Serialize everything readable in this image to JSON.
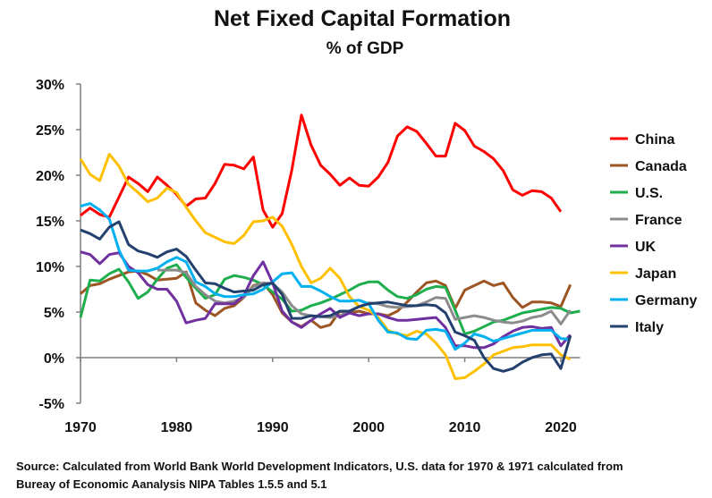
{
  "chart_data": {
    "type": "line",
    "title": "Net Fixed Capital Formation",
    "subtitle": "% of GDP",
    "xlabel": "",
    "ylabel": "",
    "xlim": [
      1970,
      2022
    ],
    "ylim": [
      -5,
      30
    ],
    "x_ticks": [
      "1970",
      "1980",
      "1990",
      "2000",
      "2010",
      "2020"
    ],
    "y_ticks": [
      "-5%",
      "0%",
      "5%",
      "10%",
      "15%",
      "20%",
      "25%",
      "30%"
    ],
    "grid": false,
    "legend_position": "right",
    "source": "Source:  Calculated from World Bank World Development Indicators, U.S. data for 1970 & 1971 calculated from Bureay of Economic Aanalysis NIPA Tables 1.5.5 and 5.1",
    "source_lines": [
      "Source:  Calculated from World Bank World Development Indicators, U.S. data for 1970 & 1971 calculated from",
      "Bureay of Economic Aanalysis NIPA Tables 1.5.5 and 5.1"
    ],
    "series": [
      {
        "name": "China",
        "color": "#ff0000",
        "start": 1970,
        "values": [
          15.6,
          16.4,
          15.7,
          15.4,
          17.6,
          19.8,
          19.1,
          18.2,
          19.8,
          18.9,
          17.9,
          16.6,
          17.4,
          17.5,
          19.1,
          21.2,
          21.1,
          20.7,
          22.0,
          16.2,
          14.3,
          15.8,
          20.6,
          26.6,
          23.3,
          21.1,
          20.1,
          18.9,
          19.7,
          18.9,
          18.8,
          19.8,
          21.4,
          24.3,
          25.3,
          24.8,
          23.5,
          22.1,
          22.1,
          25.7,
          24.9,
          23.2,
          22.6,
          21.8,
          20.5,
          18.4,
          17.8,
          18.3,
          18.2,
          17.5,
          16.0
        ]
      },
      {
        "name": "Canada",
        "color": "#9c5523",
        "start": 1970,
        "values": [
          7.0,
          7.9,
          8.1,
          8.6,
          9.0,
          9.4,
          9.5,
          9.1,
          8.5,
          8.6,
          8.7,
          9.4,
          6.0,
          5.2,
          4.6,
          5.4,
          5.7,
          6.6,
          7.9,
          8.2,
          6.9,
          4.9,
          3.9,
          3.4,
          4.1,
          3.3,
          3.6,
          5.1,
          4.9,
          5.1,
          4.8,
          4.8,
          4.6,
          5.1,
          6.1,
          7.2,
          8.2,
          8.4,
          7.9,
          5.4,
          7.4,
          7.9,
          8.4,
          7.9,
          8.2,
          6.6,
          5.5,
          6.1,
          6.1,
          6.0,
          5.6,
          8.0
        ]
      },
      {
        "name": "U.S.",
        "color": "#1fae4e",
        "start": 1970,
        "values": [
          4.4,
          8.5,
          8.4,
          9.2,
          9.7,
          8.3,
          6.5,
          7.2,
          8.6,
          9.8,
          10.2,
          8.8,
          7.6,
          6.5,
          6.9,
          8.6,
          9.0,
          8.8,
          8.5,
          8.0,
          7.2,
          6.4,
          5.1,
          5.2,
          5.7,
          6.0,
          6.4,
          6.9,
          7.4,
          8.0,
          8.3,
          8.3,
          7.4,
          6.7,
          6.5,
          6.9,
          7.5,
          7.8,
          7.7,
          5.2,
          2.6,
          2.9,
          3.4,
          3.9,
          4.1,
          4.5,
          4.9,
          5.1,
          5.3,
          5.5,
          5.4,
          4.9,
          5.1
        ]
      },
      {
        "name": "France",
        "color": "#8c8c8c",
        "start": 1978,
        "values": [
          9.6,
          9.6,
          9.6,
          9.3,
          7.8,
          6.9,
          6.2,
          6.0,
          6.2,
          6.6,
          7.8,
          8.2,
          8.1,
          7.2,
          5.7,
          4.8,
          4.6,
          4.5,
          4.4,
          4.6,
          5.1,
          5.6,
          6.0,
          5.9,
          5.6,
          5.5,
          5.6,
          5.7,
          6.1,
          6.6,
          6.5,
          4.2,
          4.4,
          4.6,
          4.4,
          4.1,
          3.9,
          3.8,
          4.0,
          4.4,
          4.6,
          5.1,
          3.7,
          5.2
        ]
      },
      {
        "name": "UK",
        "color": "#7030a0",
        "start": 1970,
        "values": [
          11.6,
          11.3,
          10.3,
          11.3,
          11.5,
          10.0,
          9.3,
          8.0,
          7.5,
          7.5,
          6.2,
          3.8,
          4.1,
          4.3,
          5.9,
          5.9,
          5.9,
          6.8,
          9.0,
          10.5,
          8.2,
          5.1,
          3.9,
          3.3,
          4.1,
          4.8,
          5.4,
          4.4,
          4.9,
          4.6,
          4.8,
          4.8,
          4.4,
          4.1,
          4.1,
          4.2,
          4.3,
          4.4,
          3.3,
          1.3,
          1.3,
          1.1,
          1.1,
          1.5,
          2.3,
          2.9,
          3.3,
          3.4,
          3.2,
          3.3,
          1.3,
          2.5
        ]
      },
      {
        "name": "Japan",
        "color": "#ffc000",
        "start": 1970,
        "values": [
          21.8,
          20.1,
          19.4,
          22.3,
          21.0,
          19.0,
          18.1,
          17.1,
          17.5,
          18.6,
          18.1,
          16.5,
          15.0,
          13.7,
          13.2,
          12.7,
          12.5,
          13.4,
          14.9,
          15.0,
          15.4,
          14.4,
          12.4,
          10.0,
          8.2,
          8.7,
          9.8,
          8.7,
          6.7,
          5.6,
          5.2,
          4.4,
          3.0,
          2.6,
          2.4,
          2.9,
          2.6,
          1.6,
          0.3,
          -2.3,
          -2.2,
          -1.5,
          -0.7,
          0.3,
          0.7,
          1.1,
          1.2,
          1.4,
          1.4,
          1.4,
          0.3,
          -0.2
        ]
      },
      {
        "name": "Germany",
        "color": "#00b0f0",
        "start": 1970,
        "values": [
          16.6,
          16.9,
          16.2,
          15.2,
          11.8,
          9.6,
          9.5,
          9.5,
          9.8,
          10.5,
          11.0,
          10.5,
          8.3,
          7.8,
          7.0,
          6.7,
          6.7,
          6.9,
          7.0,
          7.5,
          8.3,
          9.2,
          9.3,
          7.8,
          7.8,
          7.3,
          6.7,
          6.2,
          6.2,
          6.3,
          5.9,
          4.1,
          2.8,
          2.7,
          2.1,
          2.0,
          3.0,
          3.1,
          2.9,
          0.9,
          1.6,
          2.6,
          2.3,
          1.8,
          2.1,
          2.4,
          2.7,
          3.0,
          3.0,
          3.0,
          2.1,
          2.0
        ]
      },
      {
        "name": "Italy",
        "color": "#23406e",
        "start": 1970,
        "values": [
          14.0,
          13.6,
          13.0,
          14.3,
          14.9,
          12.4,
          11.7,
          11.4,
          11.0,
          11.6,
          11.9,
          11.1,
          9.6,
          8.2,
          8.1,
          7.6,
          7.2,
          7.3,
          7.4,
          8.0,
          8.2,
          6.9,
          4.3,
          4.3,
          4.6,
          4.5,
          4.6,
          5.1,
          5.1,
          5.6,
          5.9,
          6.0,
          6.1,
          5.9,
          5.7,
          5.7,
          5.8,
          5.7,
          4.9,
          2.8,
          2.4,
          1.9,
          0.0,
          -1.2,
          -1.5,
          -1.2,
          -0.5,
          0.0,
          0.3,
          0.4,
          -1.2,
          2.4
        ]
      }
    ]
  }
}
